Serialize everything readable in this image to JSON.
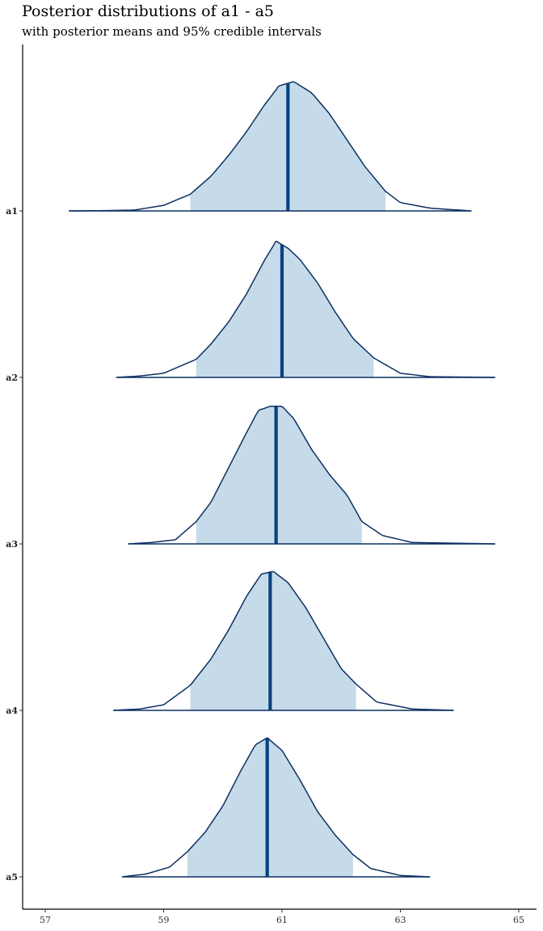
{
  "chart_data": {
    "type": "area",
    "title": "Posterior distributions of a1 - a5",
    "subtitle": "with posterior means and 95% credible intervals",
    "xlabel": "",
    "ylabel": "",
    "xlim": [
      56.6,
      65.1
    ],
    "xticks": [
      57,
      59,
      61,
      63,
      65
    ],
    "grid": false,
    "colors": {
      "fill": "#c6dbe9",
      "line": "#0c2f63",
      "mean": "#08427f"
    },
    "series": [
      {
        "name": "a1",
        "mean": 61.1,
        "ci": [
          59.45,
          62.75
        ],
        "range": [
          57.4,
          64.2
        ],
        "density": [
          [
            57.4,
            0.0
          ],
          [
            58.0,
            0.002
          ],
          [
            58.5,
            0.006
          ],
          [
            59.0,
            0.04
          ],
          [
            59.45,
            0.12
          ],
          [
            59.8,
            0.25
          ],
          [
            60.1,
            0.4
          ],
          [
            60.4,
            0.57
          ],
          [
            60.7,
            0.76
          ],
          [
            60.95,
            0.9
          ],
          [
            61.2,
            0.93
          ],
          [
            61.5,
            0.85
          ],
          [
            61.8,
            0.7
          ],
          [
            62.1,
            0.51
          ],
          [
            62.4,
            0.32
          ],
          [
            62.75,
            0.14
          ],
          [
            63.0,
            0.06
          ],
          [
            63.5,
            0.02
          ],
          [
            64.2,
            0.0
          ]
        ]
      },
      {
        "name": "a2",
        "mean": 61.0,
        "ci": [
          59.55,
          62.55
        ],
        "range": [
          58.2,
          64.6
        ],
        "density": [
          [
            58.2,
            0.0
          ],
          [
            58.6,
            0.01
          ],
          [
            59.0,
            0.03
          ],
          [
            59.55,
            0.13
          ],
          [
            59.8,
            0.24
          ],
          [
            60.1,
            0.4
          ],
          [
            60.4,
            0.6
          ],
          [
            60.7,
            0.84
          ],
          [
            60.9,
            0.98
          ],
          [
            61.1,
            0.93
          ],
          [
            61.3,
            0.85
          ],
          [
            61.6,
            0.68
          ],
          [
            61.9,
            0.47
          ],
          [
            62.2,
            0.28
          ],
          [
            62.55,
            0.14
          ],
          [
            63.0,
            0.03
          ],
          [
            63.5,
            0.005
          ],
          [
            64.6,
            0.0
          ]
        ]
      },
      {
        "name": "a3",
        "mean": 60.9,
        "ci": [
          59.55,
          62.35
        ],
        "range": [
          58.4,
          64.6
        ],
        "density": [
          [
            58.4,
            0.0
          ],
          [
            58.8,
            0.01
          ],
          [
            59.2,
            0.03
          ],
          [
            59.55,
            0.16
          ],
          [
            59.8,
            0.3
          ],
          [
            60.1,
            0.55
          ],
          [
            60.4,
            0.8
          ],
          [
            60.6,
            0.96
          ],
          [
            60.8,
            0.99
          ],
          [
            61.0,
            0.99
          ],
          [
            61.2,
            0.9
          ],
          [
            61.5,
            0.68
          ],
          [
            61.8,
            0.5
          ],
          [
            62.1,
            0.35
          ],
          [
            62.35,
            0.16
          ],
          [
            62.7,
            0.06
          ],
          [
            63.2,
            0.01
          ],
          [
            64.6,
            0.0
          ]
        ]
      },
      {
        "name": "a4",
        "mean": 60.8,
        "ci": [
          59.45,
          62.25
        ],
        "range": [
          58.15,
          63.9
        ],
        "density": [
          [
            58.15,
            0.0
          ],
          [
            58.6,
            0.01
          ],
          [
            59.0,
            0.04
          ],
          [
            59.45,
            0.18
          ],
          [
            59.8,
            0.37
          ],
          [
            60.1,
            0.58
          ],
          [
            60.4,
            0.82
          ],
          [
            60.65,
            0.98
          ],
          [
            60.85,
            1.0
          ],
          [
            61.1,
            0.92
          ],
          [
            61.4,
            0.74
          ],
          [
            61.7,
            0.52
          ],
          [
            62.0,
            0.3
          ],
          [
            62.25,
            0.19
          ],
          [
            62.6,
            0.06
          ],
          [
            63.2,
            0.01
          ],
          [
            63.9,
            0.0
          ]
        ]
      },
      {
        "name": "a5",
        "mean": 60.75,
        "ci": [
          59.4,
          62.2
        ],
        "range": [
          58.3,
          63.5
        ],
        "density": [
          [
            58.3,
            0.0
          ],
          [
            58.7,
            0.02
          ],
          [
            59.1,
            0.07
          ],
          [
            59.4,
            0.18
          ],
          [
            59.7,
            0.32
          ],
          [
            60.0,
            0.51
          ],
          [
            60.3,
            0.76
          ],
          [
            60.55,
            0.95
          ],
          [
            60.75,
            1.0
          ],
          [
            61.0,
            0.91
          ],
          [
            61.3,
            0.7
          ],
          [
            61.6,
            0.47
          ],
          [
            61.9,
            0.3
          ],
          [
            62.2,
            0.16
          ],
          [
            62.5,
            0.06
          ],
          [
            63.0,
            0.01
          ],
          [
            63.5,
            0.0
          ]
        ]
      }
    ]
  }
}
